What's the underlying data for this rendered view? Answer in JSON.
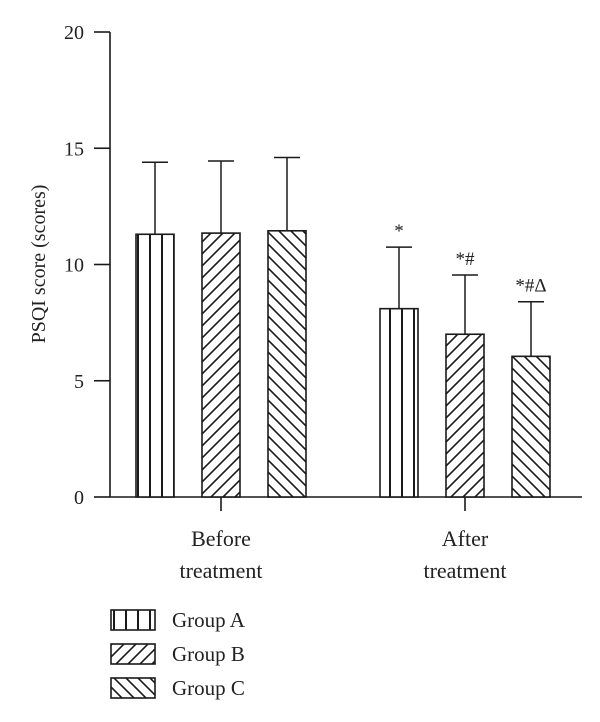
{
  "chart_data": {
    "type": "bar",
    "ylabel": "PSQI score (scores)",
    "ylim": [
      0,
      20
    ],
    "yticks": [
      "0",
      "5",
      "10",
      "15",
      "20"
    ],
    "categories": [
      {
        "line1": "Before",
        "line2": "treatment"
      },
      {
        "line1": "After",
        "line2": "treatment"
      }
    ],
    "series": [
      {
        "name": "Group A",
        "pattern": "vertical",
        "values": [
          11.3,
          8.1
        ],
        "errors": [
          3.1,
          2.65
        ]
      },
      {
        "name": "Group B",
        "pattern": "diag-up",
        "values": [
          11.35,
          7.0
        ],
        "errors": [
          3.1,
          2.55
        ]
      },
      {
        "name": "Group C",
        "pattern": "diag-down",
        "values": [
          11.45,
          6.05
        ],
        "errors": [
          3.15,
          2.35
        ]
      }
    ],
    "significance": [
      [
        "",
        "*"
      ],
      [
        "",
        "*#"
      ],
      [
        "",
        "*#Δ"
      ]
    ],
    "colors": {
      "line": "#1a1a1a",
      "fill": "#ffffff"
    }
  }
}
